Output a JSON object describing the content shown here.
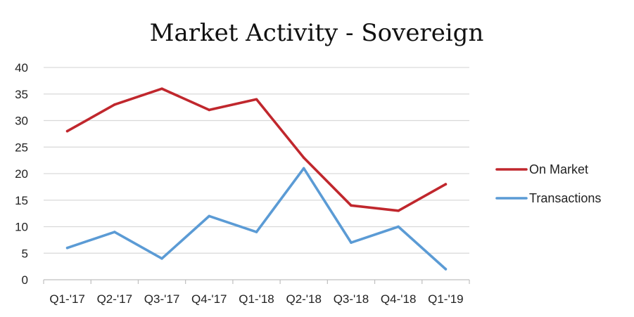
{
  "chart_data": {
    "type": "line",
    "title": "Market Activity - Sovereign",
    "categories": [
      "Q1-'17",
      "Q2-'17",
      "Q3-'17",
      "Q4-'17",
      "Q1-'18",
      "Q2-'18",
      "Q3-'18",
      "Q4-'18",
      "Q1-'19"
    ],
    "series": [
      {
        "name": "On Market",
        "color": "#c0272d",
        "values": [
          28,
          33,
          36,
          32,
          34,
          23,
          14,
          13,
          18
        ]
      },
      {
        "name": "Transactions",
        "color": "#5b9bd5",
        "values": [
          6,
          9,
          4,
          12,
          9,
          21,
          7,
          10,
          2
        ]
      }
    ],
    "xlabel": "",
    "ylabel": "",
    "ylim": [
      0,
      40
    ],
    "yticks": [
      0,
      5,
      10,
      15,
      20,
      25,
      30,
      35,
      40
    ],
    "grid": true,
    "legend_position": "right"
  }
}
